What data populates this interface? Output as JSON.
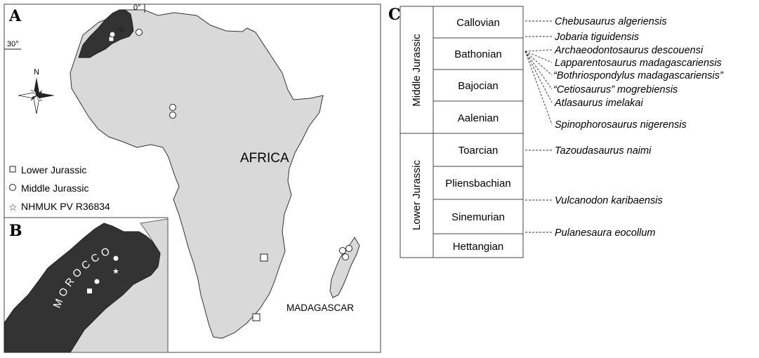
{
  "panel_a": {
    "letter": "A",
    "region_label": "AFRICA",
    "island_label": "MADAGASCAR",
    "lon_label": "0°",
    "lat_label": "30°",
    "north_label": "N",
    "legend": {
      "lower": "Lower Jurassic",
      "middle": "Middle Jurassic",
      "specimen": "NHMUK PV R36834"
    }
  },
  "panel_b": {
    "letter": "B",
    "country_label": "MOROCCO"
  },
  "panel_c": {
    "letter": "C",
    "epochs": [
      "Middle Jurassic",
      "Lower Jurassic"
    ],
    "stages": [
      "Callovian",
      "Bathonian",
      "Bajocian",
      "Aalenian",
      "Toarcian",
      "Pliensbachian",
      "Sinemurian",
      "Hettangian"
    ],
    "species": [
      {
        "name": "Chebusaurus algeriensis",
        "stage": "Callovian"
      },
      {
        "name": "Jobaria tiguidensis",
        "stage": "Callovian/Bathonian boundary"
      },
      {
        "name": "Archaeodontosaurus descouensi",
        "stage": "Bathonian"
      },
      {
        "name": "Lapparentosaurus madagascariensis",
        "stage": "Bathonian"
      },
      {
        "name": "“Bothriospondylus madagascariensis”",
        "stage": "Bathonian"
      },
      {
        "name": "“Cetiosaurus” mogrebiensis",
        "stage": "Bathonian"
      },
      {
        "name": "Atlasaurus imelakai",
        "stage": "Bathonian"
      },
      {
        "name": "Spinophorosaurus nigerensis",
        "stage": "Bathonian"
      },
      {
        "name": "Tazoudasaurus naimi",
        "stage": "Toarcian"
      },
      {
        "name": "Vulcanodon karibaensis",
        "stage": "Pliensbachian/Sinemurian"
      },
      {
        "name": "Pulanesaura eocollum",
        "stage": "Sinemurian/Hettangian"
      }
    ]
  }
}
